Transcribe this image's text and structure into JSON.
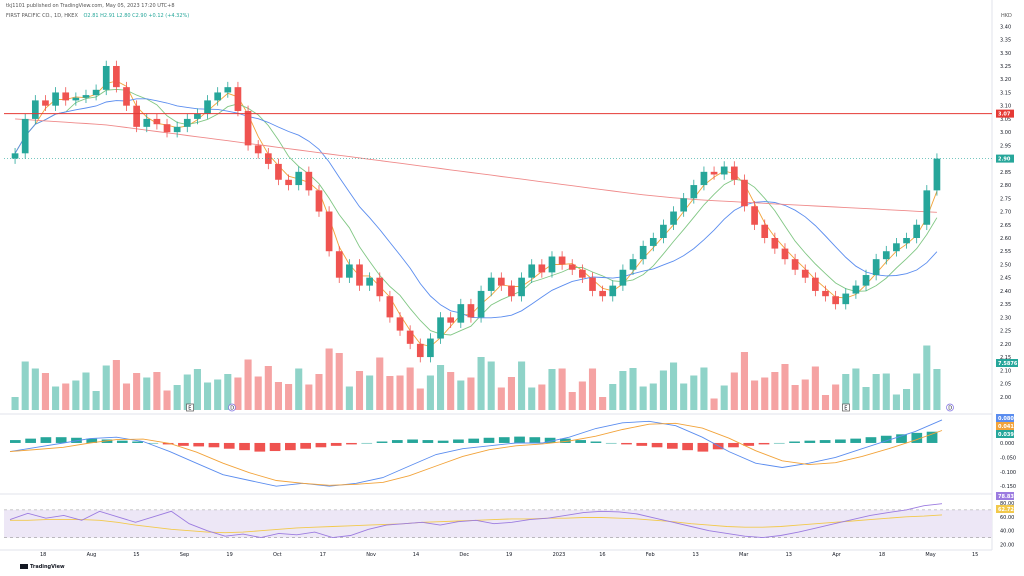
{
  "header": {
    "publisher": "tkj1101 published on TradingView.com, May 05, 2023 17:20 UTC+8",
    "symbol": "FIRST PACIFIC CO., 1D, HKEX",
    "ohlc": "O2.81 H2.91 L2.80 C2.90 +0.12 (+4.32%)",
    "currency": "HKD"
  },
  "footer": {
    "brand": "TradingView"
  },
  "colors": {
    "up": "#26a69a",
    "down": "#ef5350",
    "vol_up": "#8fd3c8",
    "vol_down": "#f5a3a3",
    "ma_fast": "#f2a33a",
    "ma_mid": "#81c784",
    "ma_slow": "#5b8def",
    "ma_long": "#ef8a8a",
    "resistance": "#e53935",
    "macd": "#5b8def",
    "signal": "#f2a33a",
    "rsi": "#9c7ce0",
    "rsi_ma": "#f2c94c"
  },
  "chart_data": [
    {
      "type": "candlestick",
      "title": "FIRST PACIFIC CO., 1D, HKEX",
      "price_axis": {
        "unit": "HKD",
        "range": [
          1.95,
          3.42
        ],
        "ticks": [
          "3.40",
          "3.35",
          "3.30",
          "3.25",
          "3.20",
          "3.15",
          "3.10",
          "3.05",
          "3.00",
          "2.95",
          "2.90",
          "2.85",
          "2.80",
          "2.75",
          "2.70",
          "2.65",
          "2.60",
          "2.55",
          "2.50",
          "2.45",
          "2.40",
          "2.35",
          "2.30",
          "2.25",
          "2.20",
          "2.15",
          "2.10",
          "2.05",
          "2.00"
        ]
      },
      "time_axis_labels": [
        "18",
        "Aug",
        "15",
        "Sep",
        "19",
        "Oct",
        "17",
        "Nov",
        "14",
        "Dec",
        "19",
        "2023",
        "16",
        "Feb",
        "13",
        "Mar",
        "13",
        "Apr",
        "18",
        "May",
        "15"
      ],
      "close_approx": [
        2.92,
        3.05,
        3.12,
        3.1,
        3.15,
        3.12,
        3.13,
        3.14,
        3.16,
        3.25,
        3.17,
        3.1,
        3.02,
        3.05,
        3.03,
        3.0,
        3.02,
        3.05,
        3.07,
        3.12,
        3.15,
        3.17,
        3.08,
        2.95,
        2.92,
        2.88,
        2.82,
        2.8,
        2.85,
        2.78,
        2.7,
        2.55,
        2.45,
        2.5,
        2.42,
        2.45,
        2.38,
        2.3,
        2.25,
        2.2,
        2.15,
        2.22,
        2.3,
        2.28,
        2.35,
        2.3,
        2.4,
        2.45,
        2.42,
        2.38,
        2.45,
        2.5,
        2.47,
        2.53,
        2.5,
        2.48,
        2.45,
        2.4,
        2.38,
        2.42,
        2.48,
        2.52,
        2.57,
        2.6,
        2.65,
        2.7,
        2.75,
        2.8,
        2.85,
        2.84,
        2.87,
        2.82,
        2.72,
        2.65,
        2.6,
        2.56,
        2.52,
        2.48,
        2.45,
        2.4,
        2.38,
        2.35,
        2.39,
        2.42,
        2.46,
        2.52,
        2.55,
        2.58,
        2.6,
        2.65,
        2.78,
        2.9
      ],
      "moving_averages": [
        {
          "name": "MA fast",
          "color": "#f2a33a"
        },
        {
          "name": "MA mid",
          "color": "#81c784"
        },
        {
          "name": "MA slow",
          "color": "#5b8def"
        },
        {
          "name": "MA long",
          "color": "#ef8a8a"
        }
      ],
      "horizontal_line": {
        "value": 3.07,
        "label": "3.07"
      },
      "last_price": {
        "value": 2.9,
        "label": "2.90"
      },
      "volume_last_label": "7.5876",
      "event_markers": [
        "E",
        "D",
        "E",
        "D"
      ]
    },
    {
      "type": "macd",
      "axis_ticks": [
        "0.050",
        "0.000",
        "-0.050",
        "-0.100",
        "-0.150"
      ],
      "range": [
        -0.17,
        0.09
      ],
      "last_labels": {
        "macd": "0.080",
        "signal": "0.041",
        "histogram": "0.039"
      },
      "histogram_approx": [
        0.01,
        0.015,
        0.02,
        0.02,
        0.018,
        0.015,
        0.012,
        0.008,
        0.005,
        0.0,
        -0.005,
        -0.01,
        -0.012,
        -0.015,
        -0.02,
        -0.025,
        -0.03,
        -0.028,
        -0.025,
        -0.02,
        -0.015,
        -0.01,
        -0.005,
        0.0,
        0.005,
        0.01,
        0.012,
        0.01,
        0.008,
        0.012,
        0.015,
        0.018,
        0.02,
        0.022,
        0.02,
        0.018,
        0.015,
        0.01,
        0.005,
        0.0,
        -0.005,
        -0.01,
        -0.015,
        -0.02,
        -0.025,
        -0.03,
        -0.022,
        -0.015,
        -0.01,
        -0.005,
        0.0,
        0.005,
        0.008,
        0.01,
        0.012,
        0.015,
        0.02,
        0.025,
        0.03,
        0.035,
        0.039
      ],
      "macd_approx": [
        -0.03,
        -0.015,
        0.0,
        0.015,
        0.02,
        0.005,
        -0.03,
        -0.07,
        -0.11,
        -0.13,
        -0.15,
        -0.14,
        -0.15,
        -0.14,
        -0.12,
        -0.08,
        -0.04,
        -0.02,
        -0.01,
        0.0,
        0.0,
        0.02,
        0.05,
        0.07,
        0.075,
        0.06,
        0.02,
        -0.03,
        -0.07,
        -0.085,
        -0.07,
        -0.05,
        -0.02,
        0.01,
        0.04,
        0.08
      ]
    },
    {
      "type": "rsi",
      "axis_ticks": [
        "80.00",
        "60.00",
        "40.00",
        "20.00"
      ],
      "range": [
        15,
        90
      ],
      "bands": [
        30,
        70
      ],
      "last_labels": {
        "rsi": "78.83",
        "rsi_ma": "62.72"
      },
      "rsi_approx": [
        56,
        65,
        58,
        62,
        55,
        68,
        60,
        52,
        60,
        68,
        50,
        40,
        32,
        35,
        30,
        36,
        34,
        38,
        30,
        33,
        42,
        48,
        50,
        52,
        48,
        53,
        55,
        50,
        52,
        56,
        58,
        62,
        66,
        68,
        67,
        64,
        58,
        52,
        46,
        40,
        36,
        32,
        30,
        33,
        38,
        44,
        50,
        56,
        62,
        66,
        70,
        76,
        78.83
      ],
      "rsi_ma_approx": [
        55,
        55,
        56,
        56,
        56,
        55,
        52,
        48,
        45,
        42,
        40,
        38,
        37,
        38,
        40,
        42,
        44,
        45,
        46,
        47,
        48,
        49,
        50,
        52,
        53,
        54,
        55,
        56,
        57,
        57,
        58,
        58,
        59,
        59,
        58,
        57,
        55,
        53,
        50,
        48,
        46,
        45,
        45,
        46,
        48,
        50,
        52,
        54,
        56,
        58,
        60,
        61,
        62.72
      ]
    }
  ]
}
